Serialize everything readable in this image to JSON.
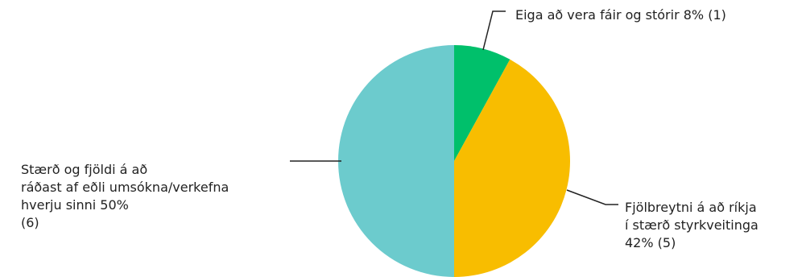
{
  "chart_data": {
    "type": "pie",
    "slices": [
      {
        "label_lines": [
          "Eiga að vera fáir og stórir 8% (1)"
        ],
        "value": 8,
        "count": 1,
        "color": "#00c06b"
      },
      {
        "label_lines": [
          "Fjölbreytni á að ríkja",
          "í stærð styrkveitinga",
          "42% (5)"
        ],
        "value": 42,
        "count": 5,
        "color": "#f8bd00"
      },
      {
        "label_lines": [
          "Stærð og fjöldi á að",
          "ráðast af eðli umsókna/verkefna",
          "hverju sinni 50%",
          "(6)"
        ],
        "value": 50,
        "count": 6,
        "color": "#6ccbcd"
      }
    ],
    "start_angle_deg": 0,
    "direction": "clockwise",
    "legend": "none"
  }
}
